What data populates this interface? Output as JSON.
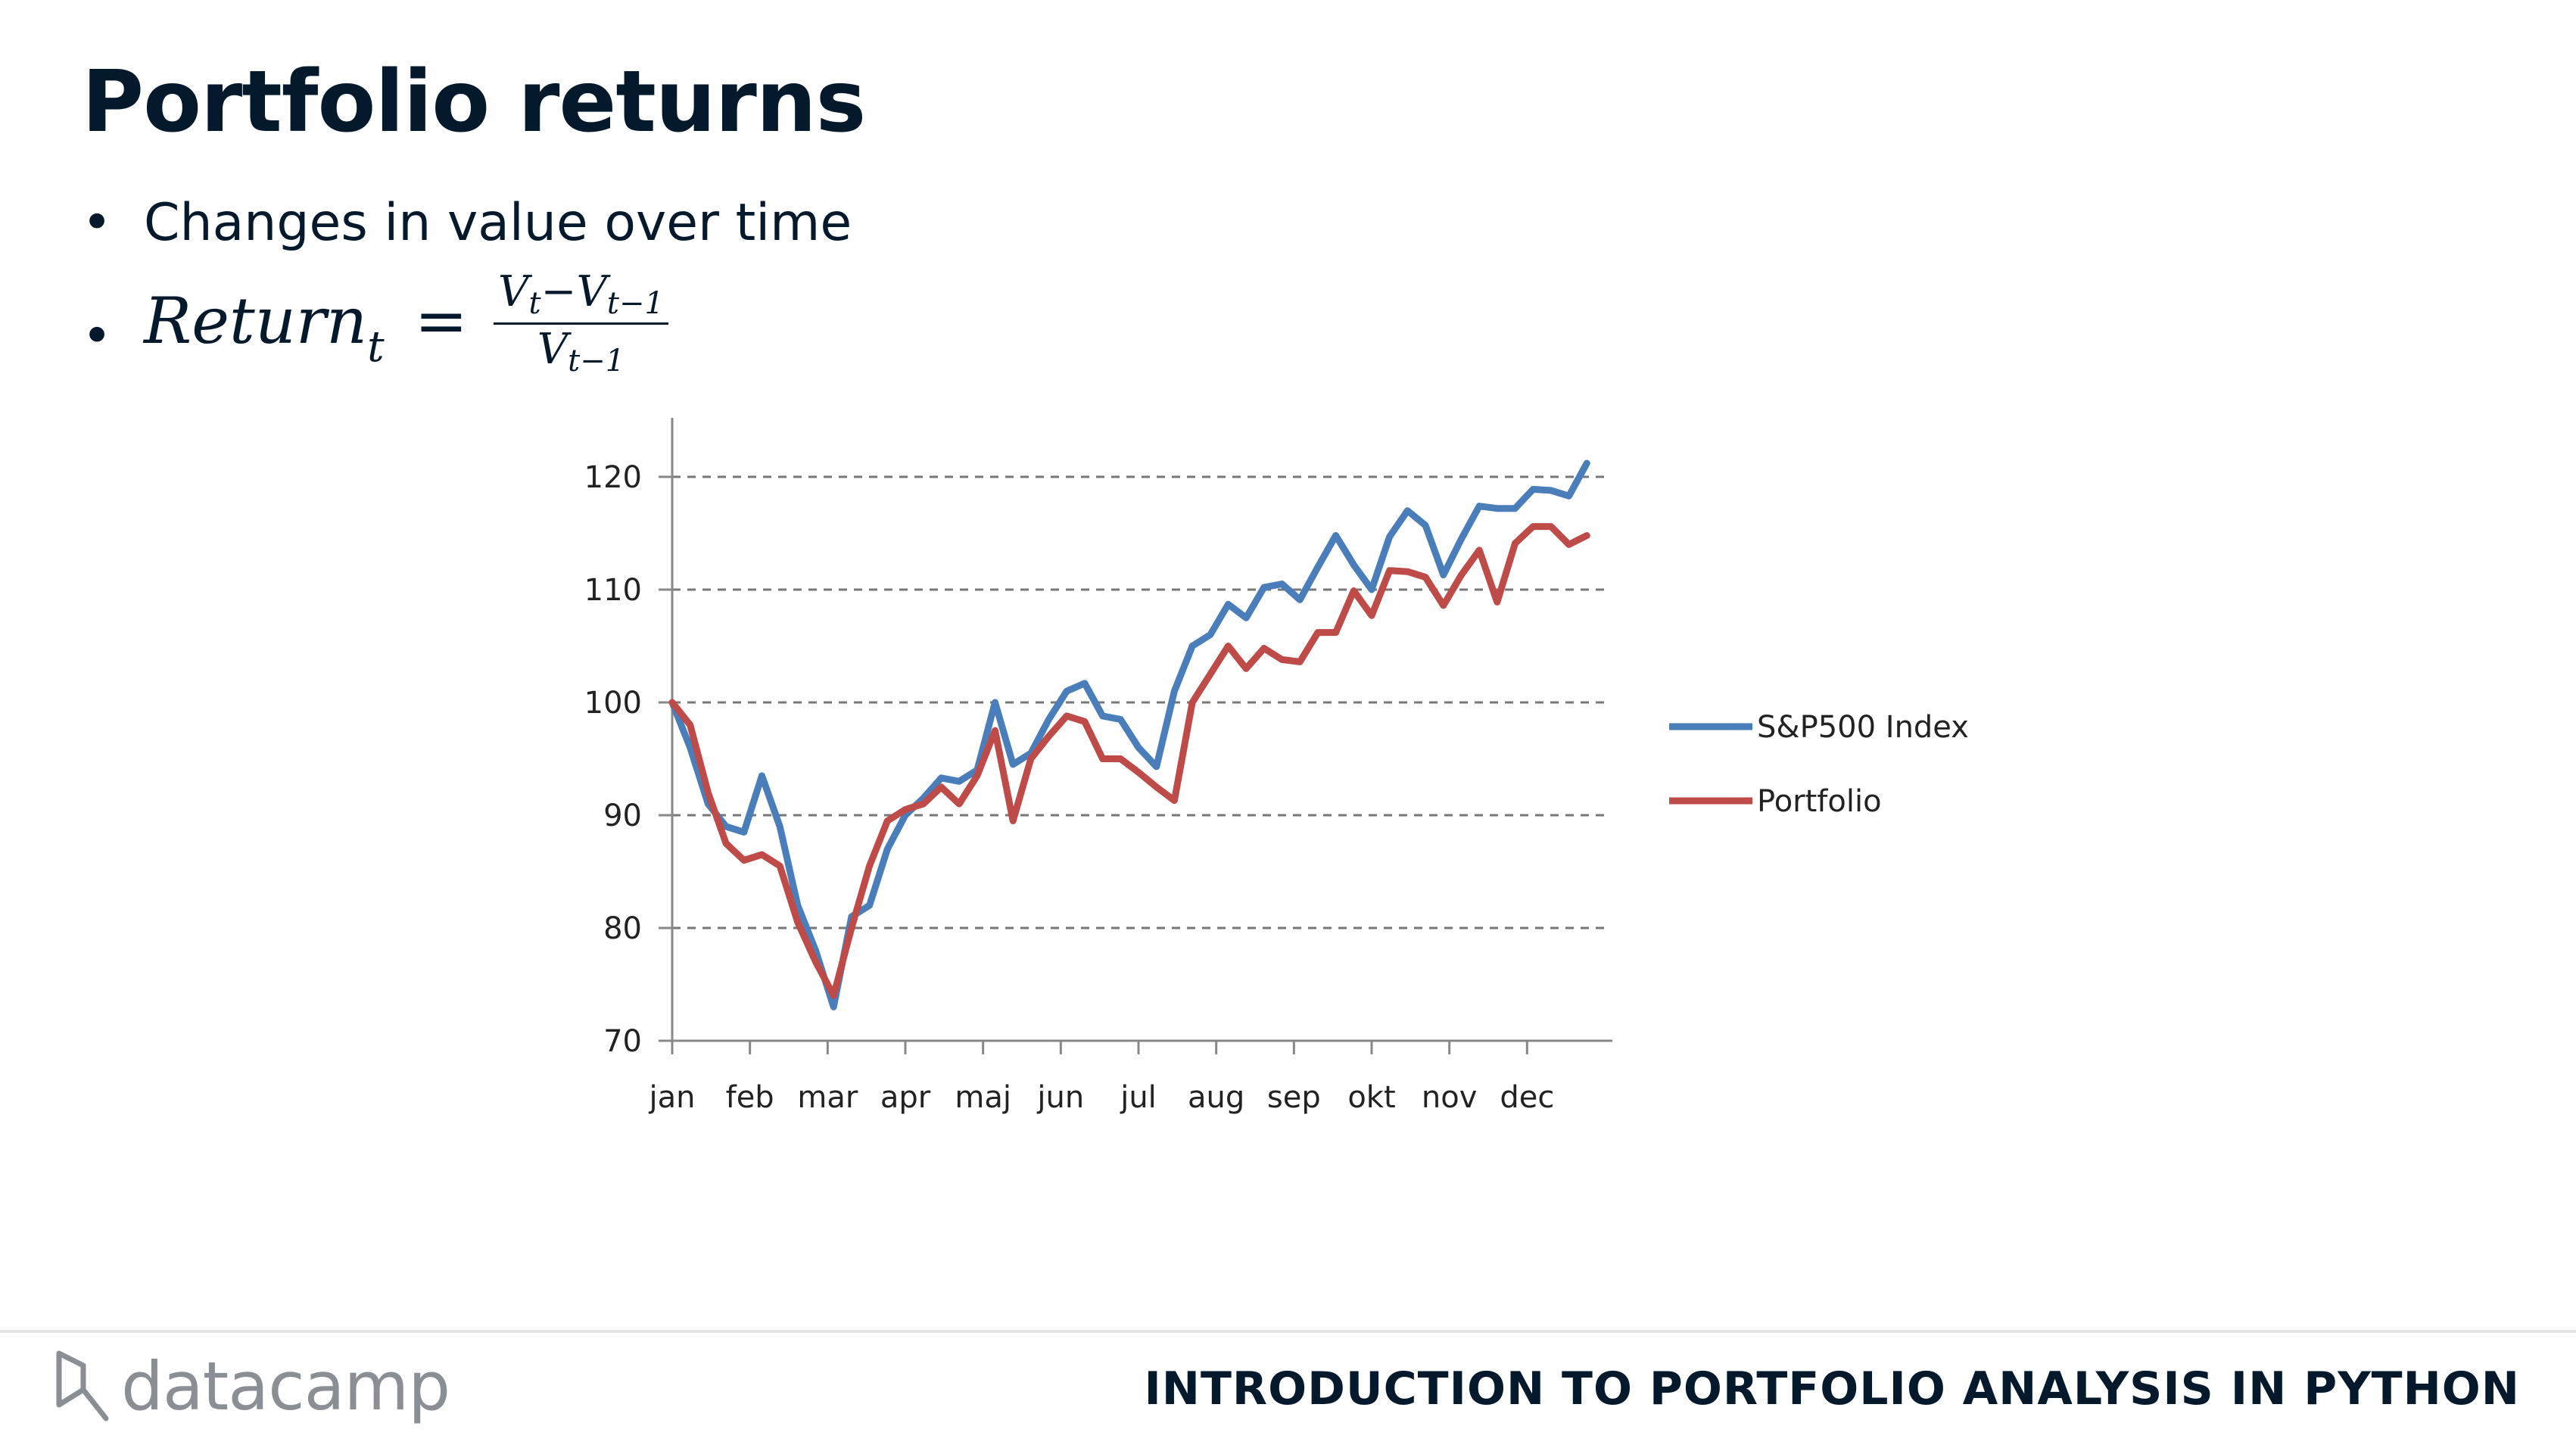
{
  "slide": {
    "title": "Portfolio returns",
    "bullets": {
      "b1": "Changes in value over time",
      "formula": {
        "lhs": "Return",
        "lhs_sub": "t",
        "eq": "=",
        "num_v1": "V",
        "num_s1": "t",
        "num_minus": "−",
        "num_v2": "V",
        "num_s2": "t−1",
        "den_v": "V",
        "den_s": "t−1"
      }
    }
  },
  "chart_data": {
    "type": "line",
    "title": "",
    "xlabel": "",
    "ylabel": "",
    "ylim": [
      70,
      120
    ],
    "yticks": [
      70,
      80,
      90,
      100,
      110,
      120
    ],
    "xticks": [
      "jan",
      "feb",
      "mar",
      "apr",
      "maj",
      "jun",
      "jul",
      "aug",
      "sep",
      "okt",
      "nov",
      "dec"
    ],
    "grid": "horizontal dashed",
    "legend": "right",
    "series": [
      {
        "name": "S&P500 Index",
        "color": "#4a7ebb",
        "values": [
          100,
          96,
          91,
          89,
          88.5,
          93.5,
          89,
          82,
          78,
          73,
          81,
          82,
          87,
          90,
          91.5,
          93.3,
          93,
          94,
          100,
          94.5,
          95.5,
          98.5,
          101,
          101.7,
          98.8,
          98.5,
          96,
          94.3,
          101,
          105,
          106,
          108.7,
          107.5,
          110.2,
          110.5,
          109.1,
          112,
          114.8,
          112.2,
          110,
          114.7,
          117,
          115.7,
          111.3,
          114.5,
          117.4,
          117.2,
          117.2,
          118.9,
          118.8,
          118.3,
          121.2
        ]
      },
      {
        "name": "Portfolio",
        "color": "#be4b48",
        "values": [
          100,
          98,
          92,
          87.5,
          86,
          86.5,
          85.5,
          80.5,
          77,
          74,
          80,
          85.5,
          89.5,
          90.5,
          91,
          92.5,
          91,
          93.5,
          97.5,
          89.5,
          95,
          97,
          98.8,
          98.3,
          95,
          95,
          93.8,
          92.5,
          91.3,
          100,
          102.5,
          105,
          103,
          104.8,
          103.8,
          103.6,
          106.2,
          106.2,
          109.9,
          107.7,
          111.7,
          111.6,
          111.1,
          108.6,
          111.3,
          113.5,
          108.9,
          114.1,
          115.6,
          115.6,
          114,
          114.8
        ]
      }
    ]
  },
  "footer": {
    "logo_text": "datacamp",
    "course_title": "INTRODUCTION TO PORTFOLIO ANALYSIS IN PYTHON"
  }
}
